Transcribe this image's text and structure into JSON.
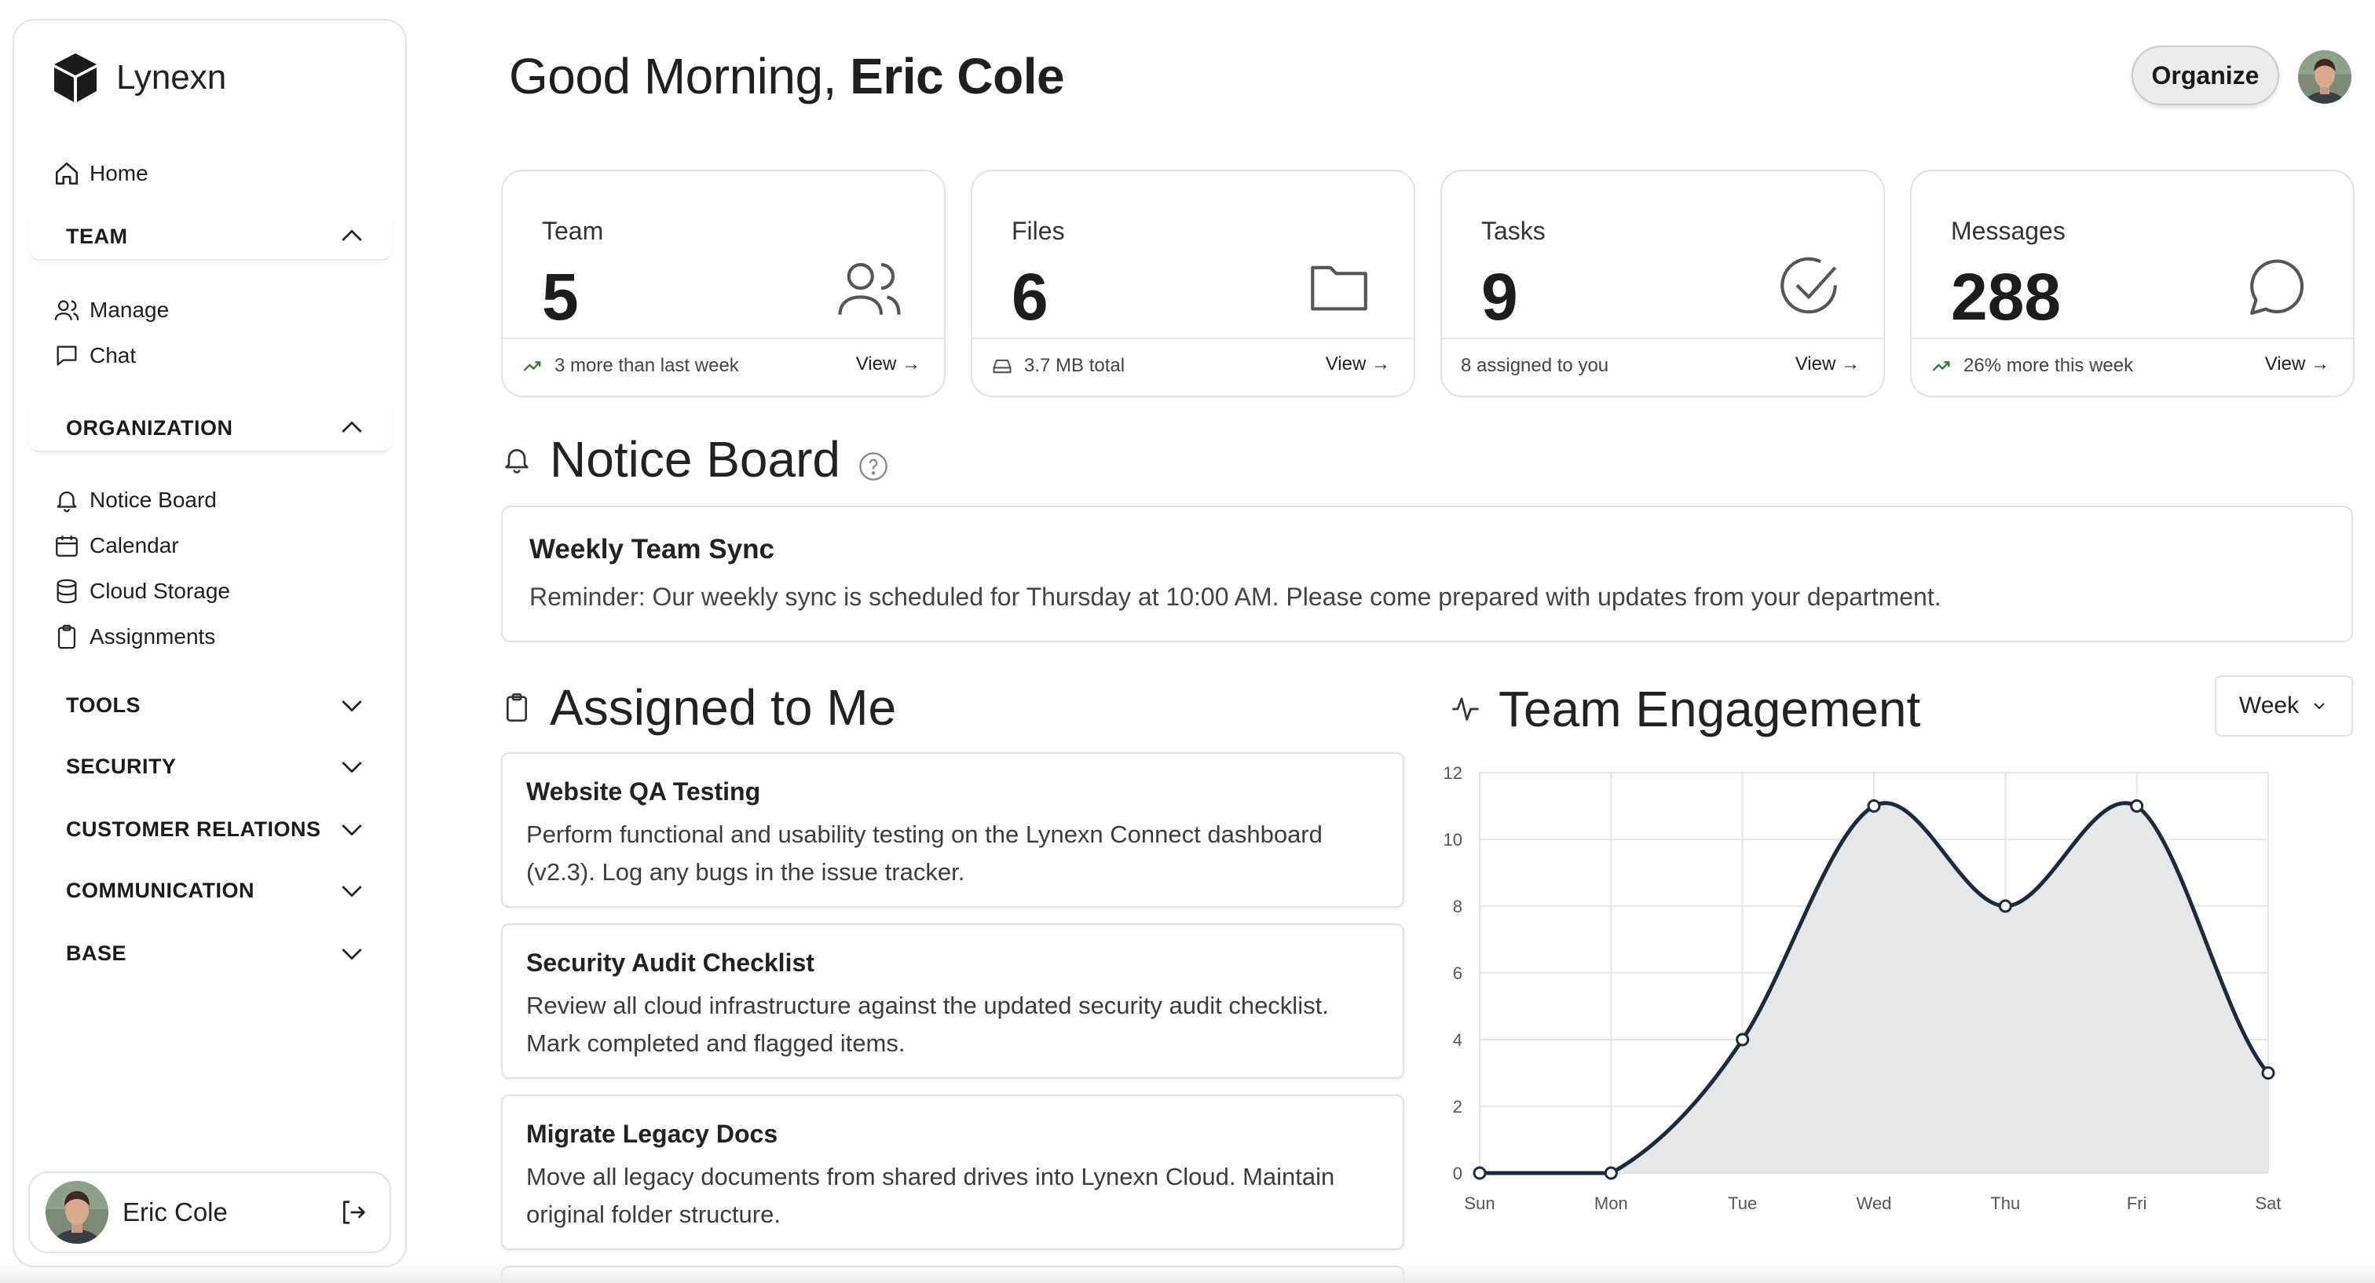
{
  "brand": {
    "name": "Lynexn"
  },
  "sidebar": {
    "home": "Home",
    "sections": [
      {
        "title": "TEAM",
        "items": [
          "Manage",
          "Chat"
        ]
      },
      {
        "title": "ORGANIZATION",
        "items": [
          "Notice Board",
          "Calendar",
          "Cloud Storage",
          "Assignments"
        ]
      },
      {
        "title": "TOOLS"
      },
      {
        "title": "SECURITY"
      },
      {
        "title": "CUSTOMER RELATIONS"
      },
      {
        "title": "COMMUNICATION"
      },
      {
        "title": "BASE"
      }
    ],
    "user": {
      "name": "Eric Cole"
    }
  },
  "header": {
    "greeting": "Good Morning,",
    "name": "Eric Cole",
    "organize_label": "Organize"
  },
  "stats": [
    {
      "label": "Team",
      "value": "5",
      "foot": "3 more than last week",
      "view": "View →"
    },
    {
      "label": "Files",
      "value": "6",
      "foot": "3.7 MB total",
      "view": "View →"
    },
    {
      "label": "Tasks",
      "value": "9",
      "foot": "8 assigned to you",
      "view": "View →"
    },
    {
      "label": "Messages",
      "value": "288",
      "foot": "26% more this week",
      "view": "View →"
    }
  ],
  "notice_board": {
    "title": "Notice Board",
    "notice": {
      "title": "Weekly Team Sync",
      "text": "Reminder: Our weekly sync is scheduled for Thursday at 10:00 AM. Please come prepared with updates from your department."
    }
  },
  "assigned": {
    "title": "Assigned to Me",
    "tasks": [
      {
        "title": "Website QA Testing",
        "desc": "Perform functional and usability testing on the Lynexn Connect dashboard (v2.3). Log any bugs in the issue tracker."
      },
      {
        "title": "Security Audit Checklist",
        "desc": "Review all cloud infrastructure against the updated security audit checklist. Mark completed and flagged items."
      },
      {
        "title": "Migrate Legacy Docs",
        "desc": "Move all legacy documents from shared drives into Lynexn Cloud. Maintain original folder structure."
      }
    ]
  },
  "engagement": {
    "title": "Team Engagement",
    "period": "Week"
  },
  "chart_data": {
    "type": "area",
    "categories": [
      "Sun",
      "Mon",
      "Tue",
      "Wed",
      "Thu",
      "Fri",
      "Sat"
    ],
    "values": [
      0,
      0,
      4,
      11,
      8,
      11,
      3
    ],
    "ylim": [
      0,
      12
    ],
    "yticks": [
      0,
      2,
      4,
      6,
      8,
      10,
      12
    ],
    "grid": true,
    "line_color": "#1e293b",
    "fill_color": "#e6e7e9"
  },
  "colors": {
    "accent": "#1e293b",
    "border": "#e1e1e1"
  }
}
